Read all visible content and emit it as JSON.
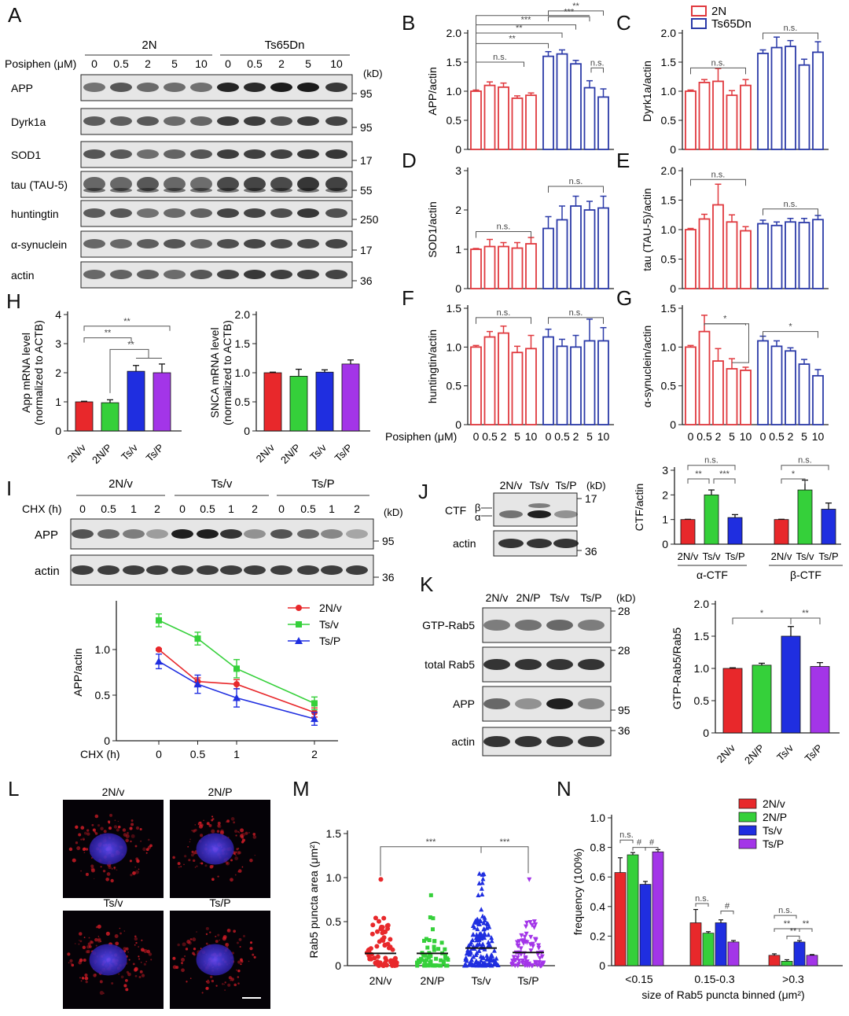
{
  "colors": {
    "red": "#e8282b",
    "green": "#35d03a",
    "blue": "#1f2ee0",
    "purple": "#a335e8",
    "red_o": "#e0393e",
    "blue_o": "#2b3aa8"
  },
  "A": {
    "letter": "A",
    "grp1": "2N",
    "grp2": "Ts65Dn",
    "posiphen": "Posiphen (μM)",
    "doses": [
      "0",
      "0.5",
      "2",
      "5",
      "10",
      "0",
      "0.5",
      "2",
      "5",
      "10"
    ],
    "kd": "(kD)",
    "rows": [
      {
        "label": "APP",
        "kd": "95"
      },
      {
        "label": "Dyrk1a",
        "kd": "95"
      },
      {
        "label": "SOD1",
        "kd": "17"
      },
      {
        "label": "tau (TAU-5)",
        "kd": "55"
      },
      {
        "label": "huntingtin",
        "kd": "250"
      },
      {
        "label": "α-synuclein",
        "kd": "17"
      },
      {
        "label": "actin",
        "kd": "36"
      }
    ]
  },
  "legendBG": {
    "a": "2N",
    "b": "Ts65Dn"
  },
  "xdoses": {
    "label": "Posiphen (μM)",
    "ticks": [
      "0",
      "0.5",
      "2",
      "5",
      "10",
      "0",
      "0.5",
      "2",
      "5",
      "10"
    ]
  },
  "panels": {
    "B": {
      "letter": "B",
      "ylabel": "APP/actin",
      "yticks": [
        "0",
        "0.5",
        "1.0",
        "1.5",
        "2.0"
      ],
      "ymax": 2.0,
      "n": [
        1.0,
        1.1,
        1.07,
        0.88,
        0.93
      ],
      "t": [
        1.6,
        1.64,
        1.47,
        1.06,
        0.9
      ],
      "ne": [
        0.02,
        0.06,
        0.07,
        0.04,
        0.04
      ],
      "te": [
        0.08,
        0.07,
        0.06,
        0.12,
        0.14
      ],
      "sig": [
        "n.s.",
        "**",
        "**",
        "***",
        "n.s.",
        "**",
        "***"
      ]
    },
    "C": {
      "letter": "C",
      "ylabel": "Dyrk1a/actin",
      "yticks": [
        "0",
        "0.5",
        "1.0",
        "1.5",
        "2.0"
      ],
      "ymax": 2.0,
      "n": [
        1.0,
        1.15,
        1.17,
        0.93,
        1.1
      ],
      "t": [
        1.65,
        1.75,
        1.77,
        1.45,
        1.67
      ],
      "ne": [
        0.02,
        0.05,
        0.22,
        0.08,
        0.1
      ],
      "te": [
        0.06,
        0.18,
        0.1,
        0.1,
        0.18
      ],
      "sig": [
        "n.s.",
        "n.s."
      ]
    },
    "D": {
      "letter": "D",
      "ylabel": "SOD1/actin",
      "yticks": [
        "0",
        "1",
        "2",
        "3"
      ],
      "ymax": 3,
      "n": [
        1.0,
        1.07,
        1.07,
        1.03,
        1.14
      ],
      "t": [
        1.53,
        1.75,
        2.1,
        2.0,
        2.05
      ],
      "ne": [
        0.02,
        0.18,
        0.1,
        0.14,
        0.16
      ],
      "te": [
        0.3,
        0.35,
        0.25,
        0.22,
        0.3
      ],
      "sig": [
        "n.s.",
        "n.s."
      ]
    },
    "E": {
      "letter": "E",
      "ylabel": "tau (TAU-5)/actin",
      "yticks": [
        "0",
        "0.5",
        "1.0",
        "1.5",
        "2.0"
      ],
      "ymax": 2.0,
      "n": [
        1.0,
        1.18,
        1.42,
        1.13,
        0.98
      ],
      "t": [
        1.1,
        1.07,
        1.13,
        1.12,
        1.17
      ],
      "ne": [
        0.02,
        0.08,
        0.35,
        0.12,
        0.07
      ],
      "te": [
        0.06,
        0.06,
        0.06,
        0.07,
        0.07
      ],
      "sig": [
        "n.s.",
        "n.s."
      ]
    },
    "F": {
      "letter": "F",
      "ylabel": "huntingtin/actin",
      "yticks": [
        "0",
        "0.5",
        "1.0",
        "1.5"
      ],
      "ymax": 1.5,
      "n": [
        1.0,
        1.13,
        1.18,
        0.93,
        0.98
      ],
      "t": [
        1.13,
        1.01,
        1.0,
        1.08,
        1.08
      ],
      "ne": [
        0.02,
        0.07,
        0.09,
        0.08,
        0.17
      ],
      "te": [
        0.1,
        0.09,
        0.15,
        0.28,
        0.17
      ],
      "sig": [
        "n.s.",
        "n.s."
      ]
    },
    "G": {
      "letter": "G",
      "ylabel": "α-synuclein/actin",
      "yticks": [
        "0",
        "0.5",
        "1.0",
        "1.5"
      ],
      "ymax": 1.5,
      "n": [
        1.0,
        1.2,
        0.82,
        0.72,
        0.7
      ],
      "t": [
        1.08,
        1.01,
        0.95,
        0.78,
        0.63
      ],
      "ne": [
        0.02,
        0.21,
        0.16,
        0.13,
        0.04
      ],
      "te": [
        0.06,
        0.07,
        0.04,
        0.06,
        0.08
      ],
      "sig": [
        "*",
        "*"
      ]
    }
  },
  "H": {
    "letter": "H",
    "app": {
      "ylabel1": "App mRNA level",
      "ylabel2": "(normalized to ACTB)",
      "yticks": [
        "0",
        "1",
        "2",
        "3",
        "4"
      ],
      "cats": [
        "2N/v",
        "2N/P",
        "Ts/v",
        "Ts/P"
      ],
      "values": [
        1.0,
        0.97,
        2.05,
        2.0
      ],
      "err": [
        0.02,
        0.1,
        0.2,
        0.3
      ],
      "sig": [
        "**",
        "**",
        "**"
      ]
    },
    "snca": {
      "ylabel1": "SNCA mRNA level",
      "ylabel2": "(normalized to ACTB)",
      "yticks": [
        "0",
        "0.5",
        "1.0",
        "1.5",
        "2.0"
      ],
      "cats": [
        "2N/v",
        "2N/P",
        "Ts/v",
        "Ts/P"
      ],
      "values": [
        1.0,
        0.94,
        1.01,
        1.15
      ],
      "err": [
        0.01,
        0.12,
        0.04,
        0.07
      ]
    }
  },
  "I": {
    "letter": "I",
    "groups": [
      "2N/v",
      "Ts/v",
      "Ts/P"
    ],
    "chx": "CHX (h)",
    "times": [
      "0",
      "0.5",
      "1",
      "2"
    ],
    "kd": "(kD)",
    "rows": [
      {
        "label": "APP",
        "kd": "95"
      },
      {
        "label": "actin",
        "kd": "36"
      }
    ],
    "chart": {
      "ylabel": "APP/actin",
      "xlabel": "CHX (h)",
      "yticks": [
        "0",
        "0.5",
        "1.0"
      ],
      "xticks": [
        "0",
        "0.5",
        "1",
        "2"
      ],
      "x": [
        0,
        0.5,
        1,
        2
      ],
      "series": [
        {
          "name": "2N/v",
          "values": [
            1.0,
            0.65,
            0.62,
            0.31
          ],
          "err": [
            0.01,
            0.04,
            0.05,
            0.05
          ]
        },
        {
          "name": "Ts/v",
          "values": [
            1.32,
            1.12,
            0.79,
            0.41
          ],
          "err": [
            0.07,
            0.07,
            0.1,
            0.07
          ]
        },
        {
          "name": "Ts/P",
          "values": [
            0.87,
            0.62,
            0.47,
            0.24
          ],
          "err": [
            0.08,
            0.1,
            0.1,
            0.07
          ]
        }
      ]
    }
  },
  "J": {
    "letter": "J",
    "lanes": [
      "2N/v",
      "Ts/v",
      "Ts/P"
    ],
    "kd": "(kD)",
    "ctf": "CTF",
    "beta": "β",
    "alpha": "α",
    "actin": "actin",
    "kd1": "17",
    "kd2": "36",
    "chart": {
      "ylabel": "CTF/actin",
      "yticks": [
        "0",
        "1",
        "2",
        "3"
      ],
      "cats": [
        "2N/v",
        "Ts/v",
        "Ts/P",
        "2N/v",
        "Ts/v",
        "Ts/P"
      ],
      "values": [
        1.0,
        2.0,
        1.08,
        1.0,
        2.2,
        1.42
      ],
      "err": [
        0.01,
        0.2,
        0.12,
        0.01,
        0.4,
        0.25
      ],
      "groups": [
        "α-CTF",
        "β-CTF"
      ],
      "sig": [
        "n.s.",
        "**",
        "***",
        "n.s.",
        "*"
      ]
    }
  },
  "K": {
    "letter": "K",
    "lanes": [
      "2N/v",
      "2N/P",
      "Ts/v",
      "Ts/P"
    ],
    "kd": "(kD)",
    "rows": [
      {
        "label": "GTP-Rab5",
        "kd": "28"
      },
      {
        "label": "total Rab5",
        "kd": "28"
      },
      {
        "label": "APP",
        "kd": "95"
      },
      {
        "label": "actin",
        "kd": "36"
      }
    ],
    "chart": {
      "ylabel": "GTP-Rab5/Rab5",
      "yticks": [
        "0",
        "0.5",
        "1.0",
        "1.5",
        "2.0"
      ],
      "cats": [
        "2N/v",
        "2N/P",
        "Ts/v",
        "Ts/P"
      ],
      "values": [
        1.0,
        1.05,
        1.5,
        1.03
      ],
      "err": [
        0.01,
        0.03,
        0.15,
        0.06
      ],
      "sig": [
        "*",
        "**"
      ]
    }
  },
  "L": {
    "letter": "L",
    "titles": [
      "2N/v",
      "2N/P",
      "Ts/v",
      "Ts/P"
    ]
  },
  "M": {
    "letter": "M",
    "ylabel": "Rab5 puncta area (μm²)",
    "yticks": [
      "0",
      "0.5",
      "1.0",
      "1.5"
    ],
    "cats": [
      "2N/v",
      "2N/P",
      "Ts/v",
      "Ts/P"
    ],
    "medians": [
      0.14,
      0.14,
      0.2,
      0.15
    ],
    "sig": [
      "***",
      "***"
    ]
  },
  "N": {
    "letter": "N",
    "ylabel": "frequency (100%)",
    "xlabel": "size of Rab5 puncta binned (μm²)",
    "yticks": [
      "0",
      "0.2",
      "0.4",
      "0.6",
      "0.8",
      "1.0"
    ],
    "bins": [
      "<0.15",
      "0.15-0.3",
      ">0.3"
    ],
    "legend": [
      "2N/v",
      "2N/P",
      "Ts/v",
      "Ts/P"
    ],
    "values": [
      [
        0.63,
        0.75,
        0.55,
        0.77
      ],
      [
        0.29,
        0.22,
        0.29,
        0.16
      ],
      [
        0.07,
        0.03,
        0.16,
        0.07
      ]
    ],
    "err": [
      [
        0.1,
        0.015,
        0.02,
        0.015
      ],
      [
        0.09,
        0.01,
        0.02,
        0.01
      ],
      [
        0.01,
        0.01,
        0.01,
        0.005
      ]
    ],
    "sig": [
      "n.s.",
      "#",
      "#",
      "n.s.",
      "#",
      "n.s.",
      "**",
      "**",
      "**"
    ]
  }
}
